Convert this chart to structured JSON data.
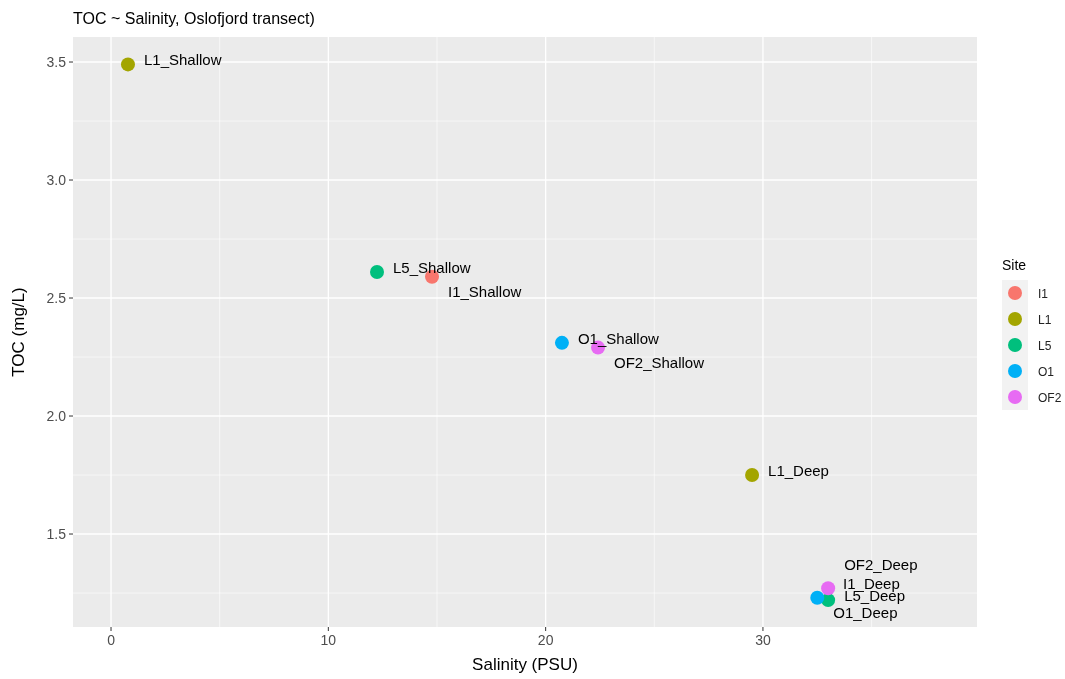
{
  "chart_data": {
    "type": "scatter",
    "title": "TOC ~ Salinity, Oslofjord transect)",
    "xlabel": "Salinity (PSU)",
    "ylabel": "TOC (mg/L)",
    "legend_title": "Site",
    "legend": "right",
    "grid": true,
    "marker": "circle",
    "xlim": [
      -1.75,
      39.85
    ],
    "ylim": [
      1.106,
      3.606
    ],
    "xticks": [
      0,
      10,
      20,
      30
    ],
    "yticks": [
      {
        "value": 1.5,
        "label": "1.5"
      },
      {
        "value": 2,
        "label": "2.0"
      },
      {
        "value": 2.5,
        "label": "2.5"
      },
      {
        "value": 3,
        "label": "3.0"
      },
      {
        "value": 3.5,
        "label": "3.5"
      }
    ],
    "series": [
      {
        "name": "I1",
        "color": "#f8766d",
        "x": [
          14.77,
          null
        ],
        "values": [
          2.59,
          null
        ]
      },
      {
        "name": "L1",
        "color": "#a3a500",
        "x": [
          0.78,
          29.5
        ],
        "values": [
          3.49,
          1.75
        ]
      },
      {
        "name": "L5",
        "color": "#00bf7d",
        "x": [
          12.24,
          33.0
        ],
        "values": [
          2.61,
          1.22
        ]
      },
      {
        "name": "O1",
        "color": "#00b0f6",
        "x": [
          20.75,
          32.5
        ],
        "values": [
          2.31,
          1.23
        ]
      },
      {
        "name": "OF2",
        "color": "#e76bf3",
        "x": [
          22.41,
          33.0
        ],
        "values": [
          2.29,
          1.27
        ]
      }
    ],
    "annotations": [
      {
        "text": "L1_Shallow",
        "x": 0.78,
        "y": 3.49
      },
      {
        "text": "L5_Shallow",
        "x": 12.24,
        "y": 2.61
      },
      {
        "text": "I1_Shallow",
        "x": 14.77,
        "y": 2.59
      },
      {
        "text": "O1_Shallow",
        "x": 20.75,
        "y": 2.31
      },
      {
        "text": "OF2_Shallow",
        "x": 22.41,
        "y": 2.29
      },
      {
        "text": "L1_Deep",
        "x": 29.5,
        "y": 1.75
      },
      {
        "text": "I1_Deep",
        "x": 32.95,
        "y": 1.27
      },
      {
        "text": "OF2_Deep",
        "x": 33.0,
        "y": 1.27
      },
      {
        "text": "O1_Deep",
        "x": 32.5,
        "y": 1.23
      },
      {
        "text": "L5_Deep",
        "x": 33.0,
        "y": 1.22
      }
    ]
  }
}
